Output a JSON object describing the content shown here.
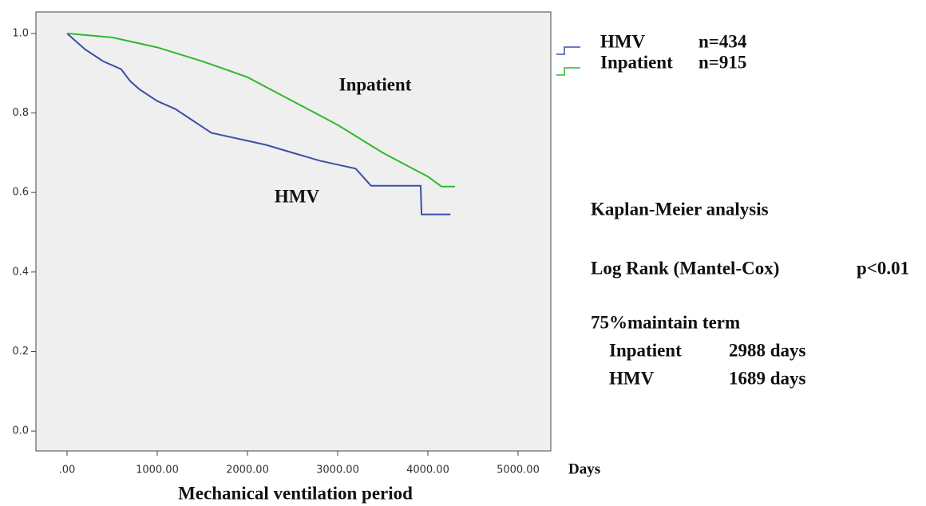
{
  "chart_data": {
    "type": "line",
    "x_label": "Mechanical ventilation period",
    "x_unit": "Days",
    "xlim": [
      -345,
      5363
    ],
    "ylim": [
      -0.05,
      1.054
    ],
    "xticks": [
      {
        "value": 0,
        "label": ".00"
      },
      {
        "value": 1000,
        "label": "1000.00"
      },
      {
        "value": 2000,
        "label": "2000.00"
      },
      {
        "value": 3000,
        "label": "3000.00"
      },
      {
        "value": 4000,
        "label": "4000.00"
      },
      {
        "value": 5000,
        "label": "5000.00"
      }
    ],
    "yticks": [
      {
        "value": 0,
        "label": "0.0"
      },
      {
        "value": 0.2,
        "label": "0.2"
      },
      {
        "value": 0.4,
        "label": "0.4"
      },
      {
        "value": 0.6,
        "label": "0.6"
      },
      {
        "value": 0.8,
        "label": "0.8"
      },
      {
        "value": 1,
        "label": "1.0"
      }
    ],
    "series": [
      {
        "name": "HMV",
        "n_label": "n=434",
        "color": "#3b4fa6",
        "x": [
          0,
          100,
          200,
          400,
          600,
          700,
          800,
          1000,
          1200,
          1400,
          1600,
          1800,
          2000,
          2200,
          2500,
          2800,
          3000,
          3200,
          3370,
          3920,
          3930,
          4250
        ],
        "values": [
          1.0,
          0.98,
          0.96,
          0.93,
          0.91,
          0.88,
          0.86,
          0.83,
          0.81,
          0.78,
          0.75,
          0.74,
          0.73,
          0.72,
          0.7,
          0.68,
          0.67,
          0.66,
          0.617,
          0.617,
          0.545,
          0.545
        ]
      },
      {
        "name": "Inpatient",
        "n_label": "n=915",
        "color": "#2fb82f",
        "x": [
          0,
          500,
          1000,
          1500,
          2000,
          2500,
          3000,
          3500,
          4000,
          4150,
          4300
        ],
        "values": [
          1.0,
          0.99,
          0.965,
          0.93,
          0.89,
          0.83,
          0.77,
          0.7,
          0.64,
          0.615,
          0.615
        ]
      }
    ],
    "annotations": [
      "Inpatient",
      "HMV"
    ],
    "analysis": {
      "title": "Kaplan-Meier analysis",
      "test": "Log Rank (Mantel-Cox)",
      "p": "p<0.01",
      "term_title": "75%maintain term",
      "rows": [
        [
          "Inpatient",
          "2988 days"
        ],
        [
          "HMV",
          "1689 days"
        ]
      ]
    }
  }
}
